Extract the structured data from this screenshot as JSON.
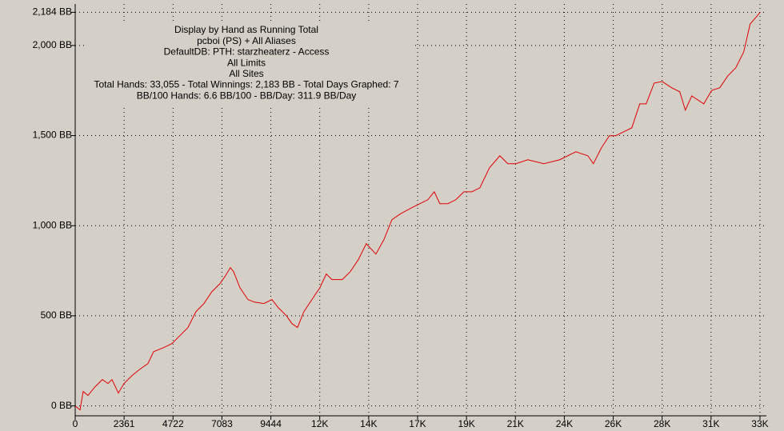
{
  "chart_data": {
    "type": "line",
    "annotations": [
      "Display by Hand as Running Total",
      "pcboi (PS) + All Aliases",
      "DefaultDB: PTH: starzheaterz - Access",
      "All Limits",
      "All Sites",
      "Total Hands: 33,055 - Total Winnings: 2,183 BB - Total Days Graphed: 7",
      "BB/100 Hands: 6.6 BB/100 - BB/Day: 311.9 BB/Day"
    ],
    "x": [
      0,
      232,
      386,
      618,
      926,
      1312,
      1583,
      1776,
      2084,
      2354,
      2741,
      3127,
      3513,
      3783,
      4285,
      4671,
      5057,
      5443,
      5829,
      6215,
      6600,
      6987,
      7257,
      7489,
      7643,
      7952,
      8338,
      8646,
      9110,
      9496,
      9804,
      10190,
      10460,
      10730,
      11040,
      11426,
      11812,
      12120,
      12391,
      12892,
      13278,
      13664,
      14050,
      14514,
      14900,
      15286,
      15672,
      16251,
      16637,
      17023,
      17331,
      17602,
      17988,
      18374,
      18760,
      19146,
      19532,
      19995,
      20497,
      20883,
      21269,
      21848,
      22620,
      23392,
      24164,
      24743,
      25013,
      25399,
      25785,
      26094,
      26480,
      26866,
      27252,
      27560,
      27946,
      28332,
      28796,
      29182,
      29452,
      29761,
      30340,
      30727,
      31112,
      31498,
      31884,
      32270,
      32578,
      32849,
      33055
    ],
    "series": [
      {
        "color": "#e00000",
        "values": [
          0,
          -22,
          80,
          58,
          102,
          146,
          124,
          146,
          71,
          124,
          168,
          204,
          235,
          301,
          324,
          346,
          390,
          435,
          523,
          568,
          634,
          678,
          723,
          767,
          745,
          656,
          590,
          576,
          568,
          590,
          545,
          501,
          457,
          435,
          523,
          590,
          656,
          732,
          701,
          701,
          745,
          811,
          900,
          842,
          922,
          1033,
          1064,
          1100,
          1122,
          1144,
          1188,
          1122,
          1122,
          1144,
          1188,
          1188,
          1210,
          1321,
          1388,
          1344,
          1344,
          1366,
          1344,
          1366,
          1410,
          1388,
          1344,
          1432,
          1499,
          1499,
          1521,
          1543,
          1676,
          1676,
          1791,
          1800,
          1765,
          1743,
          1641,
          1720,
          1676,
          1751,
          1765,
          1831,
          1876,
          1964,
          2119,
          2155,
          2183
        ]
      }
    ],
    "xlim": [
      0,
      33055
    ],
    "xticks": [
      0,
      2361,
      4722,
      7083,
      9444,
      {
        "value": 11805,
        "label": "12K"
      },
      {
        "value": 14166,
        "label": "14K"
      },
      {
        "value": 16527,
        "label": "17K"
      },
      {
        "value": 18888,
        "label": "19K"
      },
      {
        "value": 21249,
        "label": "21K"
      },
      {
        "value": 23610,
        "label": "24K"
      },
      {
        "value": 25971,
        "label": "26K"
      },
      {
        "value": 28332,
        "label": "28K"
      },
      {
        "value": 30693,
        "label": "31K"
      },
      {
        "value": 33054,
        "label": "33K"
      }
    ],
    "ylim": [
      -55,
      2230
    ],
    "yticks": [
      {
        "value": 0,
        "label": "0 BB"
      },
      {
        "value": 500,
        "label": "500 BB"
      },
      {
        "value": 1000,
        "label": "1,000 BB"
      },
      {
        "value": 1500,
        "label": "1,500 BB"
      },
      {
        "value": 2000,
        "label": "2,000 BB"
      },
      {
        "value": 2184,
        "label": "2,184 BB"
      }
    ],
    "grid": true
  }
}
